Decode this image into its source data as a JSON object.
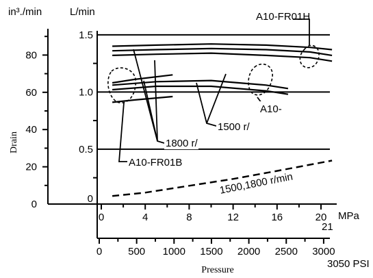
{
  "chart_data": {
    "type": "line",
    "units": {
      "left_outer": "in³./min",
      "left_inner": "L/min",
      "x_mpa": "MPa",
      "x_psi_end": "3050 PSI"
    },
    "xlabel": "Pressure",
    "ylabel": "Drain",
    "xlim_mpa": [
      0,
      21
    ],
    "ylim_lmin": [
      0,
      1.6
    ],
    "ticks": {
      "mpa": [
        "0",
        "4",
        "8",
        "12",
        "16",
        "20"
      ],
      "mpa_end": "21",
      "psi": [
        "0",
        "500",
        "1000",
        "1500",
        "2000",
        "2500",
        "3000"
      ],
      "in3min": [
        "0",
        "20",
        "40",
        "60",
        "80"
      ],
      "lmin": [
        "0.5",
        "1.0",
        "1.5"
      ]
    },
    "gridlines_lmin": [
      0.5,
      1.0,
      1.5
    ],
    "series": [
      {
        "name": "A10-FR01H",
        "group": "A10-FR01H",
        "x": [
          1,
          5,
          10,
          15,
          19,
          21
        ],
        "y": [
          1.4,
          1.41,
          1.42,
          1.41,
          1.39,
          1.37
        ]
      },
      {
        "name": "A10-FR01H",
        "group": "A10-FR01H",
        "x": [
          1,
          5,
          10,
          15,
          19,
          21
        ],
        "y": [
          1.36,
          1.37,
          1.38,
          1.37,
          1.35,
          1.32
        ]
      },
      {
        "name": "A10-FR01H",
        "group": "A10-FR01H",
        "x": [
          1,
          5,
          10,
          15,
          19,
          21
        ],
        "y": [
          1.32,
          1.33,
          1.34,
          1.32,
          1.3,
          1.27
        ]
      },
      {
        "name": "A10-",
        "group": "A10-",
        "x": [
          1,
          5,
          10,
          15,
          17
        ],
        "y": [
          1.06,
          1.09,
          1.1,
          1.06,
          1.03
        ]
      },
      {
        "name": "A10-",
        "group": "A10-",
        "x": [
          1,
          5,
          10,
          15,
          17
        ],
        "y": [
          1.02,
          1.05,
          1.05,
          1.01,
          0.98
        ]
      },
      {
        "name": "A10-FR01B",
        "group": "A10-FR01B",
        "x": [
          1,
          3,
          6.5
        ],
        "y": [
          1.08,
          1.11,
          1.15
        ]
      },
      {
        "name": "A10-FR01B",
        "group": "A10-FR01B",
        "x": [
          1,
          3,
          6.5
        ],
        "y": [
          0.91,
          0.93,
          0.96
        ]
      },
      {
        "name": "1500,1800 r/min",
        "group": "drain",
        "x": [
          1,
          4,
          8,
          12,
          16,
          21
        ],
        "y": [
          0.09,
          0.12,
          0.18,
          0.24,
          0.31,
          0.4
        ]
      }
    ],
    "annotations": [
      "A10-FR01H",
      "A10-",
      "1500 r/",
      "1800 r/",
      "A10-FR01B",
      "1500,1800 r/min"
    ]
  }
}
